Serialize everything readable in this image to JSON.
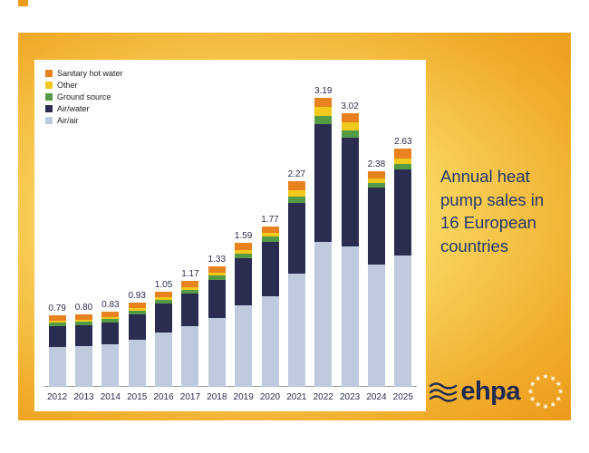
{
  "caption": {
    "text": "Annual heat\npump sales in\n16 European\ncountries"
  },
  "logo": {
    "text": "ehpa",
    "star_count": 12
  },
  "colors": {
    "accent_navy": "#2A2D50",
    "caption_text": "#21386B",
    "card_gradient": [
      "#FCEFB6",
      "#F8D55F",
      "#F1AC2B",
      "#EB9A1B"
    ]
  },
  "chart_data": {
    "type": "bar",
    "stacked": true,
    "title": "Annual heat pump sales in 16 European countries",
    "xlabel": "",
    "ylabel": "",
    "grid": false,
    "legend_position": "top-left",
    "ylim": [
      0,
      3.4
    ],
    "value_label_format": "0.00",
    "categories": [
      "2012",
      "2013",
      "2014",
      "2015",
      "2016",
      "2017",
      "2018",
      "2019",
      "2020",
      "2021",
      "2022",
      "2023",
      "2024",
      "2025"
    ],
    "totals": [
      0.79,
      0.8,
      0.83,
      0.93,
      1.05,
      1.17,
      1.33,
      1.59,
      1.77,
      2.27,
      3.19,
      3.02,
      2.38,
      2.63
    ],
    "series": [
      {
        "name": "Sanitary hot water",
        "color": "#E8821E",
        "values": [
          0.06,
          0.06,
          0.06,
          0.06,
          0.06,
          0.07,
          0.07,
          0.08,
          0.07,
          0.1,
          0.1,
          0.1,
          0.08,
          0.11
        ]
      },
      {
        "name": "Other",
        "color": "#F2C91D",
        "values": [
          0.02,
          0.02,
          0.02,
          0.03,
          0.03,
          0.03,
          0.03,
          0.04,
          0.04,
          0.07,
          0.1,
          0.09,
          0.05,
          0.06
        ]
      },
      {
        "name": "Ground source",
        "color": "#559B46",
        "values": [
          0.04,
          0.04,
          0.04,
          0.04,
          0.04,
          0.04,
          0.05,
          0.05,
          0.06,
          0.07,
          0.09,
          0.08,
          0.05,
          0.06
        ]
      },
      {
        "name": "Air/water",
        "color": "#2A2D50",
        "values": [
          0.23,
          0.23,
          0.24,
          0.28,
          0.32,
          0.36,
          0.42,
          0.52,
          0.6,
          0.78,
          1.3,
          1.2,
          0.85,
          0.95
        ]
      },
      {
        "name": "Air/air",
        "color": "#BFCADF",
        "values": [
          0.44,
          0.45,
          0.47,
          0.52,
          0.6,
          0.67,
          0.76,
          0.9,
          1.0,
          1.25,
          1.6,
          1.55,
          1.35,
          1.45
        ]
      }
    ]
  }
}
